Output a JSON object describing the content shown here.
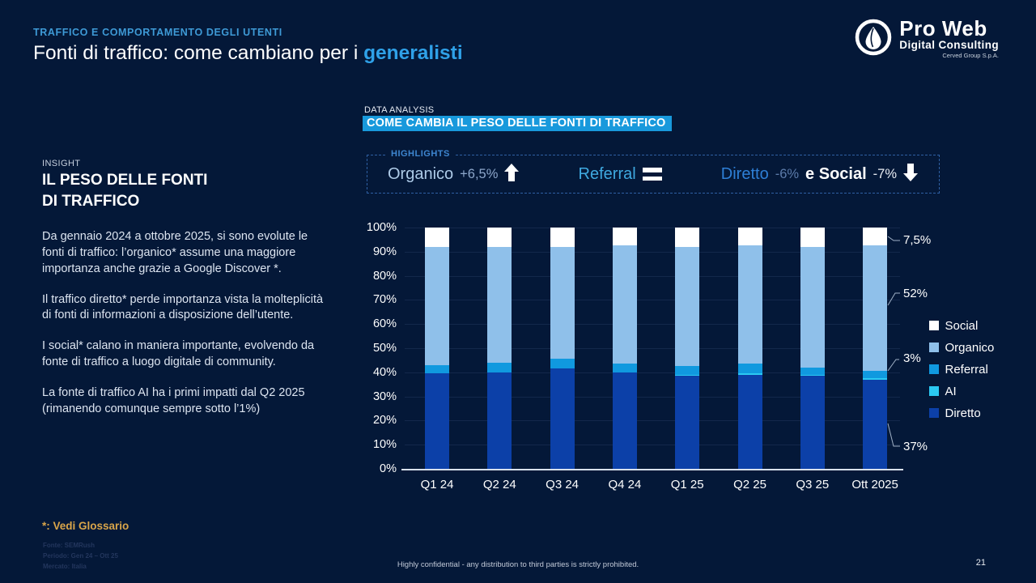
{
  "page": {
    "eyebrow": "TRAFFICO E COMPORTAMENTO DEGLI UTENTI",
    "title_prefix": "Fonti di traffico: come cambiano per i ",
    "title_accent": "generalisti",
    "confidential": "Highly confidential - any distribution to third parties is strictly prohibited.",
    "page_number": "21",
    "background_color": "#041838"
  },
  "logo": {
    "name": "Pro Web",
    "sub": "Digital Consulting",
    "group": "Cerved Group S.p.A."
  },
  "section": {
    "kicker": "DATA ANALYSIS",
    "banner": "COME CAMBIA IL PESO DELLE FONTI DI TRAFFICO",
    "banner_color": "#1899dc"
  },
  "highlights": {
    "label": "HIGHLIGHTS",
    "organico_name": "Organico",
    "organico_delta": "+6,5%",
    "referral_name": "Referral",
    "diretto_name": "Diretto",
    "diretto_delta": "-6%",
    "social_conj": "e Social",
    "social_delta": "-7%"
  },
  "insight": {
    "kicker": "INSIGHT",
    "title_line1": "IL PESO DELLE FONTI",
    "title_line2": "DI TRAFFICO",
    "paragraphs": [
      "Da gennaio 2024 a ottobre 2025, si sono evolute le fonti di traffico: l’organico* assume una maggiore importanza anche grazie a Google Discover *.",
      "Il traffico diretto* perde importanza vista la molteplicità di fonti di informazioni a disposizione dell’utente.",
      "I social* calano in maniera importante, evolvendo da fonte di traffico a luogo digitale di community.",
      "La fonte di traffico AI ha i primi impatti dal Q2 2025 (rimanendo comunque sempre sotto l’1%)"
    ]
  },
  "footnote": {
    "glossary": "*: Vedi Glossario",
    "source_lines": [
      "Fonte: SEMRush",
      "Periodo: Gen 24 – Ott 25",
      "Mercato: Italia"
    ]
  },
  "chart_data": {
    "type": "bar",
    "stacked": true,
    "title": "COME CAMBIA IL PESO DELLE FONTI DI TRAFFICO",
    "categories": [
      "Q1 24",
      "Q2 24",
      "Q3 24",
      "Q4 24",
      "Q1 25",
      "Q2 25",
      "Q3 25",
      "Ott 2025"
    ],
    "series": [
      {
        "name": "Diretto",
        "color": "#0c40a8",
        "values": [
          39.5,
          40,
          41.5,
          40,
          38.5,
          39,
          38.5,
          37
        ]
      },
      {
        "name": "AI",
        "color": "#2bc9f2",
        "values": [
          0,
          0,
          0,
          0,
          0.5,
          0.5,
          0.5,
          0.5
        ]
      },
      {
        "name": "Referral",
        "color": "#1099df",
        "values": [
          3.5,
          4,
          4,
          3.5,
          3.5,
          4,
          3,
          3
        ]
      },
      {
        "name": "Organico",
        "color": "#8fc0ea",
        "values": [
          49,
          48,
          46.5,
          49,
          49.5,
          49,
          50,
          52
        ]
      },
      {
        "name": "Social",
        "color": "#ffffff",
        "values": [
          8,
          8,
          8,
          7.5,
          8,
          7.5,
          8,
          7.5
        ]
      }
    ],
    "legend_order": [
      "Social",
      "Organico",
      "Referral",
      "AI",
      "Diretto"
    ],
    "y_ticks": [
      "0%",
      "10%",
      "20%",
      "30%",
      "40%",
      "50%",
      "60%",
      "70%",
      "80%",
      "90%",
      "100%"
    ],
    "ylim": [
      0,
      100
    ],
    "grid": true,
    "legend_position": "right",
    "annotations": [
      {
        "text": "7,5%",
        "series": "Social"
      },
      {
        "text": "52%",
        "series": "Organico"
      },
      {
        "text": "3%",
        "series": "Referral"
      },
      {
        "text": "37%",
        "series": "Diretto"
      }
    ]
  }
}
